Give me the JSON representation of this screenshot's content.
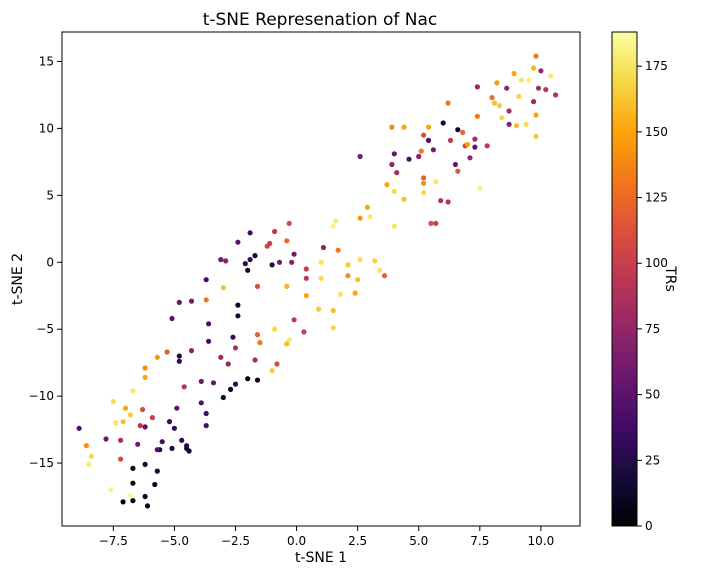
{
  "chart_data": {
    "type": "scatter",
    "title": "t-SNE Represenation of Nac",
    "xlabel": "t-SNE 1",
    "ylabel": "t-SNE 2",
    "colorbar_label": "TRs",
    "xlim": [
      -9.6,
      11.6
    ],
    "ylim": [
      -19.7,
      17.2
    ],
    "clim": [
      0,
      188
    ],
    "colormap": "inferno",
    "x_ticks": [
      -7.5,
      -5.0,
      -2.5,
      0.0,
      2.5,
      5.0,
      7.5,
      10.0
    ],
    "x_tick_labels": [
      "−7.5",
      "−5.0",
      "−2.5",
      "0.0",
      "2.5",
      "5.0",
      "7.5",
      "10.0"
    ],
    "y_ticks": [
      -15,
      -10,
      -5,
      0,
      5,
      10,
      15
    ],
    "y_tick_labels": [
      "−15",
      "−10",
      "−5",
      "0",
      "5",
      "10",
      "15"
    ],
    "c_ticks": [
      0,
      25,
      50,
      75,
      100,
      125,
      150,
      175
    ],
    "c_tick_labels": [
      "0",
      "25",
      "50",
      "75",
      "100",
      "125",
      "150",
      "175"
    ],
    "grid": false,
    "points": [
      [
        -7.1,
        -17.9,
        2
      ],
      [
        -6.7,
        -17.8,
        4
      ],
      [
        -6.1,
        -18.2,
        6
      ],
      [
        -6.2,
        -17.5,
        8
      ],
      [
        -6.7,
        -16.5,
        3
      ],
      [
        -5.8,
        -16.6,
        10
      ],
      [
        -6.2,
        -15.1,
        12
      ],
      [
        -6.7,
        -15.4,
        5
      ],
      [
        -5.7,
        -15.6,
        14
      ],
      [
        -5.6,
        -14.0,
        18
      ],
      [
        -5.1,
        -13.9,
        22
      ],
      [
        -4.5,
        -13.9,
        20
      ],
      [
        -4.4,
        -14.1,
        16
      ],
      [
        -4.5,
        -13.7,
        24
      ],
      [
        -4.7,
        -13.3,
        26
      ],
      [
        -5.0,
        -12.4,
        32
      ],
      [
        -5.2,
        -11.9,
        36
      ],
      [
        -5.5,
        -13.4,
        40
      ],
      [
        -5.7,
        -14.0,
        44
      ],
      [
        -6.2,
        -12.3,
        48
      ],
      [
        -4.9,
        -10.9,
        52
      ],
      [
        -3.9,
        -10.5,
        46
      ],
      [
        -3.7,
        -11.3,
        38
      ],
      [
        -3.7,
        -12.2,
        42
      ],
      [
        -3.0,
        -10.1,
        8
      ],
      [
        -2.7,
        -9.5,
        6
      ],
      [
        -2.0,
        -8.7,
        4
      ],
      [
        -1.6,
        -8.8,
        10
      ],
      [
        -2.5,
        -9.1,
        30
      ],
      [
        -3.4,
        -9.0,
        56
      ],
      [
        -3.9,
        -8.9,
        60
      ],
      [
        -4.6,
        -9.3,
        90
      ],
      [
        -5.9,
        -11.6,
        100
      ],
      [
        -6.4,
        -12.2,
        95
      ],
      [
        -6.3,
        -11.0,
        110
      ],
      [
        -6.5,
        -13.6,
        60
      ],
      [
        -7.2,
        -13.3,
        85
      ],
      [
        -7.2,
        -14.7,
        110
      ],
      [
        -6.8,
        -17.4,
        185
      ],
      [
        -7.6,
        -17.0,
        182
      ],
      [
        -8.5,
        -15.1,
        178
      ],
      [
        -8.4,
        -14.5,
        170
      ],
      [
        -8.6,
        -13.7,
        140
      ],
      [
        -8.9,
        -12.4,
        45
      ],
      [
        -7.8,
        -13.2,
        60
      ],
      [
        -7.4,
        -12.0,
        175
      ],
      [
        -7.1,
        -11.9,
        160
      ],
      [
        -7.0,
        -10.9,
        150
      ],
      [
        -6.8,
        -11.4,
        165
      ],
      [
        -7.5,
        -10.4,
        172
      ],
      [
        -6.7,
        -9.6,
        176
      ],
      [
        -6.2,
        -8.6,
        150
      ],
      [
        -6.2,
        -7.9,
        140
      ],
      [
        -5.7,
        -7.1,
        145
      ],
      [
        -5.3,
        -6.7,
        120
      ],
      [
        -4.8,
        -7.0,
        25
      ],
      [
        -4.8,
        -7.4,
        30
      ],
      [
        -4.3,
        -6.6,
        70
      ],
      [
        -3.6,
        -5.9,
        40
      ],
      [
        -3.6,
        -4.6,
        42
      ],
      [
        -3.1,
        -7.1,
        80
      ],
      [
        -2.8,
        -7.6,
        75
      ],
      [
        -2.5,
        -6.4,
        90
      ],
      [
        -2.6,
        -5.6,
        34
      ],
      [
        -2.4,
        -4.0,
        20
      ],
      [
        -2.4,
        -3.2,
        15
      ],
      [
        -1.6,
        -5.4,
        120
      ],
      [
        -1.7,
        -7.3,
        85
      ],
      [
        -1.5,
        -6.0,
        130
      ],
      [
        -1.0,
        -8.1,
        165
      ],
      [
        -0.8,
        -7.6,
        110
      ],
      [
        -0.9,
        -5.0,
        170
      ],
      [
        -0.3,
        -5.8,
        178
      ],
      [
        -0.1,
        -4.3,
        95
      ],
      [
        0.3,
        -5.2,
        100
      ],
      [
        -0.4,
        -6.1,
        160
      ],
      [
        -4.8,
        -3.0,
        55
      ],
      [
        -4.3,
        -2.9,
        60
      ],
      [
        -5.1,
        -4.2,
        50
      ],
      [
        -3.7,
        -1.3,
        38
      ],
      [
        -3.7,
        -2.8,
        130
      ],
      [
        -3.0,
        -1.9,
        160
      ],
      [
        -2.9,
        0.1,
        70
      ],
      [
        -3.1,
        0.2,
        62
      ],
      [
        -2.4,
        1.5,
        48
      ],
      [
        -2.1,
        -0.1,
        30
      ],
      [
        -1.9,
        0.2,
        28
      ],
      [
        -2.0,
        -0.6,
        12
      ],
      [
        -1.7,
        0.5,
        20
      ],
      [
        -1.9,
        2.2,
        40
      ],
      [
        -1.6,
        -1.8,
        110
      ],
      [
        -1.2,
        1.2,
        105
      ],
      [
        -1.1,
        1.4,
        100
      ],
      [
        -0.9,
        2.3,
        95
      ],
      [
        -1.0,
        -0.2,
        26
      ],
      [
        -0.7,
        0.0,
        60
      ],
      [
        -0.4,
        1.6,
        125
      ],
      [
        -0.3,
        2.9,
        108
      ],
      [
        -0.1,
        0.6,
        58
      ],
      [
        -0.2,
        0.0,
        70
      ],
      [
        -0.4,
        -1.8,
        155
      ],
      [
        0.4,
        -0.5,
        98
      ],
      [
        0.4,
        -1.2,
        92
      ],
      [
        0.4,
        -2.5,
        150
      ],
      [
        0.9,
        -3.5,
        165
      ],
      [
        1.0,
        -1.2,
        172
      ],
      [
        1.0,
        0.0,
        175
      ],
      [
        1.1,
        1.1,
        70
      ],
      [
        1.5,
        -3.6,
        160
      ],
      [
        1.5,
        -4.9,
        170
      ],
      [
        1.5,
        2.7,
        182
      ],
      [
        1.6,
        3.1,
        178
      ],
      [
        1.7,
        0.9,
        130
      ],
      [
        1.8,
        -2.4,
        175
      ],
      [
        2.1,
        -0.2,
        165
      ],
      [
        2.1,
        -1.0,
        140
      ],
      [
        2.4,
        -2.3,
        150
      ],
      [
        2.5,
        -1.3,
        160
      ],
      [
        2.6,
        0.2,
        172
      ],
      [
        2.6,
        3.3,
        145
      ],
      [
        2.9,
        4.1,
        150
      ],
      [
        3.0,
        3.4,
        178
      ],
      [
        3.2,
        0.1,
        168
      ],
      [
        3.4,
        -0.6,
        175
      ],
      [
        3.6,
        -1.0,
        120
      ],
      [
        2.6,
        7.9,
        60
      ],
      [
        3.7,
        5.8,
        150
      ],
      [
        3.9,
        7.3,
        72
      ],
      [
        4.0,
        8.1,
        55
      ],
      [
        4.1,
        6.7,
        85
      ],
      [
        4.0,
        5.3,
        170
      ],
      [
        3.9,
        10.1,
        140
      ],
      [
        4.4,
        10.1,
        150
      ],
      [
        4.4,
        4.7,
        160
      ],
      [
        4.0,
        2.7,
        176
      ],
      [
        4.6,
        7.7,
        45
      ],
      [
        5.0,
        7.9,
        70
      ],
      [
        5.2,
        6.3,
        120
      ],
      [
        5.2,
        5.9,
        140
      ],
      [
        5.2,
        5.2,
        170
      ],
      [
        5.1,
        8.3,
        130
      ],
      [
        5.2,
        9.5,
        110
      ],
      [
        5.4,
        10.1,
        150
      ],
      [
        5.4,
        9.1,
        45
      ],
      [
        5.5,
        2.9,
        110
      ],
      [
        5.7,
        2.9,
        100
      ],
      [
        5.7,
        6.0,
        176
      ],
      [
        5.6,
        8.4,
        60
      ],
      [
        5.9,
        4.6,
        88
      ],
      [
        6.0,
        10.4,
        20
      ],
      [
        6.2,
        11.9,
        130
      ],
      [
        6.2,
        4.5,
        90
      ],
      [
        6.3,
        9.1,
        96
      ],
      [
        6.5,
        7.3,
        55
      ],
      [
        6.6,
        9.9,
        12
      ],
      [
        6.6,
        6.8,
        115
      ],
      [
        6.8,
        9.7,
        125
      ],
      [
        6.9,
        8.7,
        105
      ],
      [
        7.1,
        7.8,
        75
      ],
      [
        7.0,
        8.8,
        150
      ],
      [
        7.3,
        9.2,
        85
      ],
      [
        7.3,
        8.6,
        50
      ],
      [
        7.5,
        5.5,
        182
      ],
      [
        7.4,
        10.9,
        130
      ],
      [
        7.4,
        13.1,
        80
      ],
      [
        7.8,
        8.7,
        95
      ],
      [
        8.0,
        12.3,
        125
      ],
      [
        8.1,
        11.9,
        160
      ],
      [
        8.2,
        13.4,
        145
      ],
      [
        8.3,
        11.7,
        165
      ],
      [
        8.4,
        10.8,
        170
      ],
      [
        8.6,
        13.0,
        75
      ],
      [
        8.7,
        10.3,
        70
      ],
      [
        8.7,
        11.3,
        85
      ],
      [
        8.9,
        14.1,
        150
      ],
      [
        9.0,
        10.2,
        160
      ],
      [
        9.1,
        12.4,
        168
      ],
      [
        9.2,
        13.6,
        176
      ],
      [
        9.4,
        10.3,
        172
      ],
      [
        9.5,
        13.6,
        180
      ],
      [
        9.7,
        14.5,
        155
      ],
      [
        9.8,
        15.4,
        130
      ],
      [
        9.8,
        11.0,
        150
      ],
      [
        9.8,
        9.4,
        165
      ],
      [
        9.7,
        12.0,
        80
      ],
      [
        9.9,
        13.0,
        85
      ],
      [
        10.0,
        14.3,
        75
      ],
      [
        10.2,
        12.9,
        95
      ],
      [
        10.4,
        13.9,
        178
      ],
      [
        10.6,
        12.5,
        90
      ]
    ]
  }
}
